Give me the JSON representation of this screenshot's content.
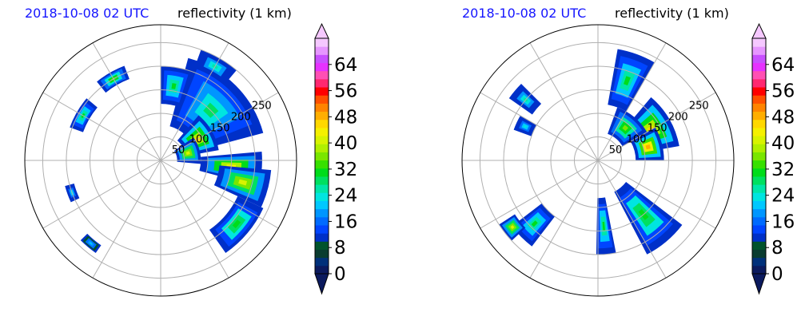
{
  "colors": {
    "timestamp": "#1515ff",
    "grid": "#b0b0b0",
    "colorscale": [
      "#0b1a5e",
      "#00307a",
      "#0a3c30",
      "#00532c",
      "#0030c8",
      "#0045ff",
      "#006bff",
      "#0096ff",
      "#00c8ff",
      "#00e5e0",
      "#00e6a8",
      "#00e060",
      "#00dc1a",
      "#37e000",
      "#7ae600",
      "#b0ef00",
      "#d8f300",
      "#f5f000",
      "#ffd800",
      "#ffae00",
      "#ff8400",
      "#ff5000",
      "#ff0000",
      "#ff2870",
      "#ff50b4",
      "#e632ff",
      "#c850ff",
      "#e696ff",
      "#f5c8ff"
    ]
  },
  "chart_data": [
    {
      "type": "heatmap",
      "subtype": "polar radar reflectivity",
      "timestamp": "2018-10-08 02 UTC",
      "title": "reflectivity (1 km)",
      "range_rings": [
        50,
        100,
        150,
        200,
        250
      ],
      "range_ring_labels": [
        "50",
        "100",
        "150",
        "200",
        "250"
      ],
      "radial_lines_deg": [
        0,
        30,
        60,
        90,
        120,
        150,
        180,
        210,
        240,
        270,
        300,
        330
      ],
      "colorbar": {
        "ticks": [
          0,
          8,
          16,
          24,
          32,
          40,
          48,
          56,
          64
        ],
        "tick_labels": [
          "0",
          "8",
          "16",
          "24",
          "32",
          "40",
          "48",
          "56",
          "64"
        ],
        "range": [
          0,
          72
        ],
        "extend": "both"
      },
      "features": [
        {
          "az": 45,
          "range": 150,
          "ar": 60,
          "rr": 150,
          "level": 28
        },
        {
          "az": 60,
          "range": 90,
          "ar": 40,
          "rr": 70,
          "level": 45
        },
        {
          "az": 75,
          "range": 60,
          "ar": 40,
          "rr": 50,
          "level": 42
        },
        {
          "az": 95,
          "range": 150,
          "ar": 20,
          "rr": 130,
          "level": 44
        },
        {
          "az": 105,
          "range": 180,
          "ar": 20,
          "rr": 110,
          "level": 40
        },
        {
          "az": 130,
          "range": 210,
          "ar": 30,
          "rr": 60,
          "level": 32
        },
        {
          "az": 30,
          "range": 230,
          "ar": 20,
          "rr": 40,
          "level": 26
        },
        {
          "az": 330,
          "range": 200,
          "ar": 18,
          "rr": 30,
          "level": 34
        },
        {
          "az": 300,
          "range": 190,
          "ar": 20,
          "rr": 30,
          "level": 30
        },
        {
          "az": 250,
          "range": 200,
          "ar": 10,
          "rr": 20,
          "level": 24
        },
        {
          "az": 220,
          "range": 230,
          "ar": 10,
          "rr": 20,
          "level": 22
        },
        {
          "az": 10,
          "range": 160,
          "ar": 20,
          "rr": 80,
          "level": 30
        }
      ]
    },
    {
      "type": "heatmap",
      "subtype": "polar radar reflectivity",
      "timestamp": "2018-10-08 02 UTC",
      "title": "reflectivity (1 km)",
      "range_rings": [
        50,
        100,
        150,
        200,
        250
      ],
      "range_ring_labels": [
        "50",
        "100",
        "150",
        "200",
        "250"
      ],
      "radial_lines_deg": [
        0,
        30,
        60,
        90,
        120,
        150,
        180,
        210,
        240,
        270,
        300,
        330
      ],
      "colorbar": {
        "ticks": [
          0,
          8,
          16,
          24,
          32,
          40,
          48,
          56,
          64
        ],
        "tick_labels": [
          "0",
          "8",
          "16",
          "24",
          "32",
          "40",
          "48",
          "56",
          "64"
        ],
        "range": [
          0,
          72
        ],
        "extend": "both"
      },
      "features": [
        {
          "az": 60,
          "range": 130,
          "ar": 40,
          "rr": 90,
          "level": 45
        },
        {
          "az": 20,
          "range": 180,
          "ar": 20,
          "rr": 120,
          "level": 30
        },
        {
          "az": 75,
          "range": 110,
          "ar": 30,
          "rr": 60,
          "level": 48
        },
        {
          "az": 140,
          "range": 150,
          "ar": 25,
          "rr": 150,
          "level": 32
        },
        {
          "az": 175,
          "range": 140,
          "ar": 12,
          "rr": 120,
          "level": 30
        },
        {
          "az": 225,
          "range": 190,
          "ar": 15,
          "rr": 80,
          "level": 30
        },
        {
          "az": 232,
          "range": 230,
          "ar": 10,
          "rr": 40,
          "level": 40
        },
        {
          "az": 310,
          "range": 200,
          "ar": 10,
          "rr": 60,
          "level": 26
        },
        {
          "az": 295,
          "range": 170,
          "ar": 10,
          "rr": 40,
          "level": 24
        },
        {
          "az": 40,
          "range": 90,
          "ar": 40,
          "rr": 60,
          "level": 36
        }
      ]
    }
  ]
}
